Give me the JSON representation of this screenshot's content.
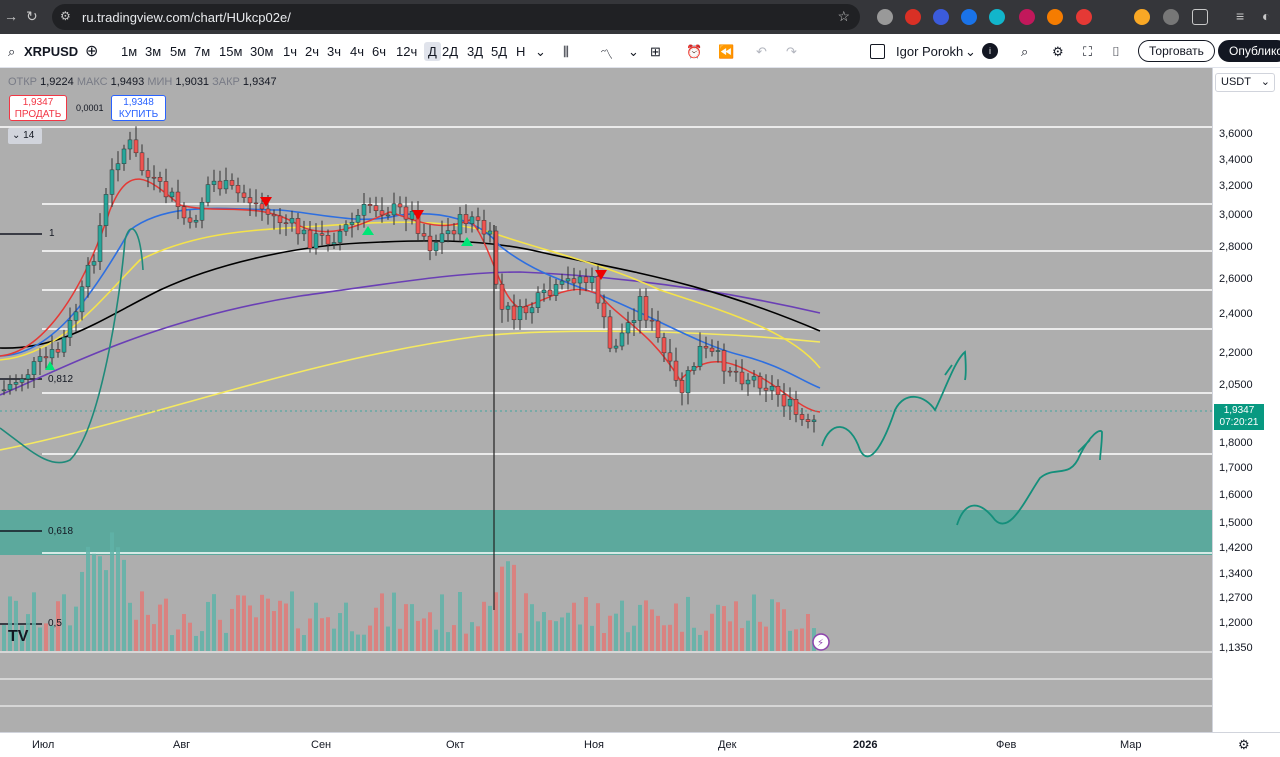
{
  "browser": {
    "url": "ru.tradingview.com/chart/HUkcp02e/"
  },
  "toolbar": {
    "symbol": "XRPUSD",
    "intervals": [
      "1м",
      "3м",
      "5м",
      "7м",
      "15м",
      "30м",
      "1ч",
      "2ч",
      "3ч",
      "4ч",
      "6ч",
      "12ч",
      "Д",
      "2Д",
      "3Д",
      "5Д",
      "Н"
    ],
    "active_interval": "Д",
    "user": "Igor Porokh",
    "trade_button": "Торговать",
    "publish_button": "Опублико"
  },
  "legend": {
    "open_label": "ОТКР",
    "open": "1,9224",
    "high_label": "МАКС",
    "high": "1,9493",
    "low_label": "МИН",
    "low": "1,9031",
    "close_label": "ЗАКР",
    "close": "1,9347"
  },
  "trade": {
    "sell_price": "1,9347",
    "sell_label": "ПРОДАТЬ",
    "spread": "0,0001",
    "buy_price": "1,9348",
    "buy_label": "КУПИТЬ"
  },
  "collapse_count": "14",
  "fib_levels": [
    {
      "label": "1"
    },
    {
      "label": "0,812"
    },
    {
      "label": "0,618"
    },
    {
      "label": "0,5"
    }
  ],
  "price_scale": {
    "currency": "USDT",
    "labels": [
      "3,6000",
      "3,4000",
      "3,2000",
      "3,0000",
      "2,8000",
      "2,6000",
      "2,4000",
      "2,2000",
      "2,0500",
      "1,8000",
      "1,7000",
      "1,6000",
      "1,5000",
      "1,4200",
      "1,3400",
      "1,2700",
      "1,2000",
      "1,1350"
    ],
    "current_price": "1,9347",
    "countdown": "07:20:21"
  },
  "time_scale": {
    "labels": [
      "Июл",
      "Авг",
      "Сен",
      "Окт",
      "Ноя",
      "Дек",
      "2026",
      "Фев",
      "Мар"
    ]
  },
  "colors": {
    "up": "#26a69a",
    "down": "#ef5350",
    "zone": "#4da89a"
  }
}
